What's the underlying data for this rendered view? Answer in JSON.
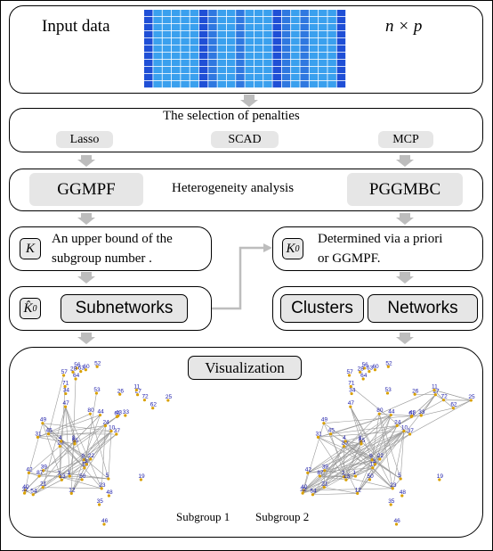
{
  "input": {
    "label": "Input data",
    "dims": "n × p"
  },
  "penalties": {
    "title": "The selection of penalties",
    "items": [
      "Lasso",
      "SCAD",
      "MCP"
    ]
  },
  "analysis": {
    "left": "GGMPF",
    "center": "Heterogeneity analysis",
    "right": "PGGMBC"
  },
  "k_box": {
    "symbol": "K",
    "line1": "An upper bound of the",
    "line2": "subgroup number ."
  },
  "k0_box": {
    "symbol": "K",
    "sub": "0",
    "line1": "Determined via a priori",
    "line2": "or GGMPF."
  },
  "subnet": {
    "symbol": "K",
    "sub": "0",
    "label": "Subnetworks"
  },
  "clusters": {
    "left": "Clusters",
    "right": "Networks"
  },
  "viz": {
    "title": "Visualization",
    "sub1": "Subgroup 1",
    "sub2": "Subgroup 2"
  },
  "colors": {
    "heat_dark": "#1f4fd6",
    "heat_light": "#3aa0ee",
    "heat_mid": "#2f78e0",
    "node_blue": "#1a1aa8",
    "node_orange": "#d9a000"
  },
  "networks": {
    "labels": [
      "53",
      "57",
      "52",
      "64",
      "60",
      "34",
      "56",
      "63",
      "71",
      "28",
      "61",
      "33",
      "27",
      "72",
      "62",
      "26",
      "11",
      "25",
      "9",
      "10",
      "20",
      "7",
      "4",
      "49",
      "80",
      "39",
      "23",
      "5",
      "22",
      "12",
      "45",
      "31",
      "18",
      "21",
      "37",
      "8",
      "40",
      "13",
      "65",
      "42",
      "24",
      "43",
      "3",
      "50",
      "87",
      "54",
      "32",
      "1",
      "44",
      "47",
      "19",
      "48",
      "35",
      "46"
    ]
  }
}
